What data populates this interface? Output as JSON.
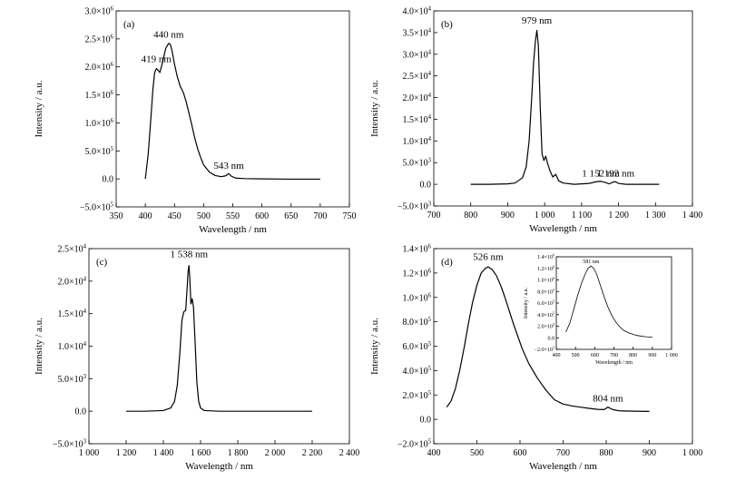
{
  "chart_data": [
    {
      "id": "a",
      "type": "line",
      "panel_label": "(a)",
      "xlabel": "Wavelength / nm",
      "ylabel": "Intensity / a.u.",
      "xlim": [
        350,
        750
      ],
      "ylim": [
        -500000,
        3000000
      ],
      "xticks": [
        350,
        400,
        450,
        500,
        550,
        600,
        650,
        700,
        750
      ],
      "xtick_labels": [
        "350",
        "400",
        "450",
        "500",
        "550",
        "600",
        "650",
        "700",
        "750"
      ],
      "yticks": [
        -500000,
        0,
        500000,
        1000000,
        1500000,
        2000000,
        2500000,
        3000000
      ],
      "ytick_labels": [
        {
          "m": "−5.0×10",
          "e": "5"
        },
        {
          "m": "0.0",
          "e": ""
        },
        {
          "m": "5.0×10",
          "e": "5"
        },
        {
          "m": "1.0×10",
          "e": "6"
        },
        {
          "m": "1.5×10",
          "e": "6"
        },
        {
          "m": "2.0×10",
          "e": "6"
        },
        {
          "m": "2.5×10",
          "e": "6"
        },
        {
          "m": "3.0×10",
          "e": "6"
        }
      ],
      "series": [
        {
          "x": [
            400,
            405,
            410,
            413,
            416,
            419,
            422,
            425,
            430,
            435,
            440,
            443,
            446,
            450,
            455,
            460,
            465,
            470,
            475,
            480,
            485,
            490,
            495,
            500,
            510,
            520,
            530,
            538,
            543,
            548,
            555,
            570,
            600,
            650,
            700
          ],
          "y": [
            0,
            450000,
            1150000,
            1600000,
            1900000,
            1970000,
            1940000,
            1900000,
            2100000,
            2330000,
            2420000,
            2400000,
            2280000,
            2050000,
            1820000,
            1650000,
            1550000,
            1380000,
            1170000,
            950000,
            720000,
            530000,
            380000,
            250000,
            120000,
            60000,
            40000,
            55000,
            95000,
            45000,
            15000,
            5000,
            0,
            -5000,
            -5000
          ]
        }
      ],
      "annotations": [
        {
          "text": "419 nm",
          "x": 419,
          "y": 2000000
        },
        {
          "text": "440 nm",
          "x": 440,
          "y": 2440000
        },
        {
          "text": "543 nm",
          "x": 543,
          "y": 100000
        }
      ]
    },
    {
      "id": "b",
      "type": "line",
      "panel_label": "(b)",
      "xlabel": "Wavelength / nm",
      "ylabel": "Intensity / a.u.",
      "xlim": [
        700,
        1400
      ],
      "ylim": [
        -5000,
        40000
      ],
      "xticks": [
        700,
        800,
        900,
        1000,
        1100,
        1200,
        1300,
        1400
      ],
      "xtick_labels": [
        "700",
        "800",
        "900",
        "1 000",
        "1 100",
        "1 200",
        "1 300",
        "1 400"
      ],
      "yticks": [
        -5000,
        0,
        5000,
        10000,
        15000,
        20000,
        25000,
        30000,
        35000,
        40000
      ],
      "ytick_labels": [
        {
          "m": "−5.0×10",
          "e": "3"
        },
        {
          "m": "0.0",
          "e": ""
        },
        {
          "m": "5.0×10",
          "e": "3"
        },
        {
          "m": "1.0×10",
          "e": "4"
        },
        {
          "m": "1.5×10",
          "e": "4"
        },
        {
          "m": "2.0×10",
          "e": "4"
        },
        {
          "m": "2.5×10",
          "e": "4"
        },
        {
          "m": "3.0×10",
          "e": "4"
        },
        {
          "m": "3.5×10",
          "e": "4"
        },
        {
          "m": "4.0×10",
          "e": "4"
        }
      ],
      "series": [
        {
          "x": [
            800,
            850,
            900,
            920,
            940,
            950,
            958,
            965,
            970,
            975,
            979,
            983,
            988,
            993,
            998,
            1003,
            1008,
            1015,
            1022,
            1030,
            1038,
            1050,
            1080,
            1120,
            1140,
            1152,
            1165,
            1175,
            1185,
            1192,
            1200,
            1220,
            1260,
            1310
          ],
          "y": [
            0,
            0,
            100,
            300,
            1500,
            4000,
            10000,
            20000,
            28000,
            33000,
            35500,
            32000,
            18000,
            7000,
            5500,
            6500,
            4800,
            3000,
            1700,
            2300,
            800,
            300,
            0,
            200,
            600,
            700,
            400,
            100,
            500,
            600,
            200,
            0,
            0,
            0
          ]
        }
      ],
      "annotations": [
        {
          "text": "979 nm",
          "x": 979,
          "y": 36000
        },
        {
          "text": "1 152 nm",
          "x": 1152,
          "y": 800
        },
        {
          "text": "1 192 nm",
          "x": 1192,
          "y": 800
        }
      ]
    },
    {
      "id": "c",
      "type": "line",
      "panel_label": "(c)",
      "xlabel": "Wavelength / nm",
      "ylabel": "Intensity / a.u.",
      "xlim": [
        1000,
        2400
      ],
      "ylim": [
        -5000,
        25000
      ],
      "xticks": [
        1000,
        1200,
        1400,
        1600,
        1800,
        2000,
        2200,
        2400
      ],
      "xtick_labels": [
        "1 000",
        "1 200",
        "1 400",
        "1 600",
        "1 800",
        "2 000",
        "2 200",
        "2 400"
      ],
      "yticks": [
        -5000,
        0,
        5000,
        10000,
        15000,
        20000,
        25000
      ],
      "ytick_labels": [
        {
          "m": "−5.0×10",
          "e": "3"
        },
        {
          "m": "0.0",
          "e": ""
        },
        {
          "m": "5.0×10",
          "e": "3"
        },
        {
          "m": "1.0×10",
          "e": "4"
        },
        {
          "m": "1.5×10",
          "e": "4"
        },
        {
          "m": "2.0×10",
          "e": "4"
        },
        {
          "m": "2.5×10",
          "e": "4"
        }
      ],
      "series": [
        {
          "x": [
            1200,
            1300,
            1400,
            1440,
            1460,
            1475,
            1490,
            1500,
            1510,
            1520,
            1528,
            1533,
            1538,
            1543,
            1548,
            1555,
            1562,
            1570,
            1580,
            1590,
            1600,
            1620,
            1700,
            1800,
            2000,
            2200
          ],
          "y": [
            0,
            0,
            100,
            500,
            1500,
            4000,
            9500,
            14000,
            15300,
            15500,
            19000,
            21500,
            22400,
            20000,
            16500,
            17300,
            16000,
            11000,
            4500,
            1500,
            500,
            100,
            0,
            0,
            0,
            0
          ]
        }
      ],
      "annotations": [
        {
          "text": "1 538 nm",
          "x": 1538,
          "y": 23000
        }
      ]
    },
    {
      "id": "d",
      "type": "line",
      "panel_label": "(d)",
      "xlabel": "Wavelength / nm",
      "ylabel": "Intensity / a.u.",
      "xlim": [
        400,
        1000
      ],
      "ylim": [
        -200000,
        1400000
      ],
      "xticks": [
        400,
        500,
        600,
        700,
        800,
        900,
        1000
      ],
      "xtick_labels": [
        "400",
        "500",
        "600",
        "700",
        "800",
        "900",
        "1 000"
      ],
      "yticks": [
        -200000,
        0,
        200000,
        400000,
        600000,
        800000,
        1000000,
        1200000,
        1400000
      ],
      "ytick_labels": [
        {
          "m": "−2.0×10",
          "e": "5"
        },
        {
          "m": "0.0",
          "e": ""
        },
        {
          "m": "2.0×10",
          "e": "5"
        },
        {
          "m": "4.0×10",
          "e": "5"
        },
        {
          "m": "6.0×10",
          "e": "5"
        },
        {
          "m": "8.0×10",
          "e": "5"
        },
        {
          "m": "1.0×10",
          "e": "6"
        },
        {
          "m": "1.2×10",
          "e": "6"
        },
        {
          "m": "1.4×10",
          "e": "6"
        }
      ],
      "series": [
        {
          "x": [
            430,
            440,
            450,
            460,
            470,
            480,
            490,
            500,
            510,
            520,
            526,
            535,
            545,
            555,
            565,
            575,
            585,
            595,
            605,
            620,
            640,
            660,
            680,
            700,
            720,
            740,
            760,
            780,
            795,
            804,
            815,
            830,
            850,
            880,
            900
          ],
          "y": [
            100000,
            150000,
            250000,
            400000,
            580000,
            780000,
            960000,
            1100000,
            1200000,
            1240000,
            1250000,
            1230000,
            1180000,
            1100000,
            1000000,
            890000,
            780000,
            680000,
            580000,
            460000,
            340000,
            240000,
            160000,
            125000,
            110000,
            100000,
            90000,
            82000,
            80000,
            100000,
            80000,
            70000,
            68000,
            66000,
            65000
          ]
        }
      ],
      "annotations": [
        {
          "text": "526 nm",
          "x": 526,
          "y": 1270000
        },
        {
          "text": "804 nm",
          "x": 804,
          "y": 110000
        }
      ],
      "inset": {
        "type": "line",
        "xlabel": "Wavelength / nm",
        "ylabel": "Intensity / a.u.",
        "xlim": [
          400,
          1000
        ],
        "ylim": [
          -200000,
          1400000
        ],
        "xticks": [
          400,
          500,
          600,
          700,
          800,
          900,
          1000
        ],
        "xtick_labels": [
          "400",
          "500",
          "600",
          "700",
          "800",
          "900",
          "1 000"
        ],
        "yticks": [
          -200000,
          0,
          200000,
          400000,
          600000,
          800000,
          1000000,
          1200000,
          1400000
        ],
        "ytick_labels": [
          {
            "m": "−2.0×10",
            "e": "5"
          },
          {
            "m": "0.0",
            "e": ""
          },
          {
            "m": "2.0×10",
            "e": "5"
          },
          {
            "m": "4.0×10",
            "e": "5"
          },
          {
            "m": "6.0×10",
            "e": "5"
          },
          {
            "m": "8.0×10",
            "e": "5"
          },
          {
            "m": "1.0×10",
            "e": "6"
          },
          {
            "m": "1.2×10",
            "e": "6"
          },
          {
            "m": "1.4×10",
            "e": "6"
          }
        ],
        "series": [
          {
            "x": [
              450,
              470,
              490,
              510,
              530,
              550,
              565,
              581,
              595,
              610,
              630,
              650,
              670,
              690,
              710,
              730,
              750,
              780,
              820,
              860,
              900
            ],
            "y": [
              100000,
              250000,
              480000,
              720000,
              930000,
              1100000,
              1200000,
              1240000,
              1200000,
              1100000,
              900000,
              700000,
              520000,
              380000,
              270000,
              190000,
              130000,
              80000,
              40000,
              20000,
              10000
            ]
          }
        ],
        "annotations": [
          {
            "text": "581 nm",
            "x": 581,
            "y": 1260000
          }
        ]
      }
    }
  ]
}
